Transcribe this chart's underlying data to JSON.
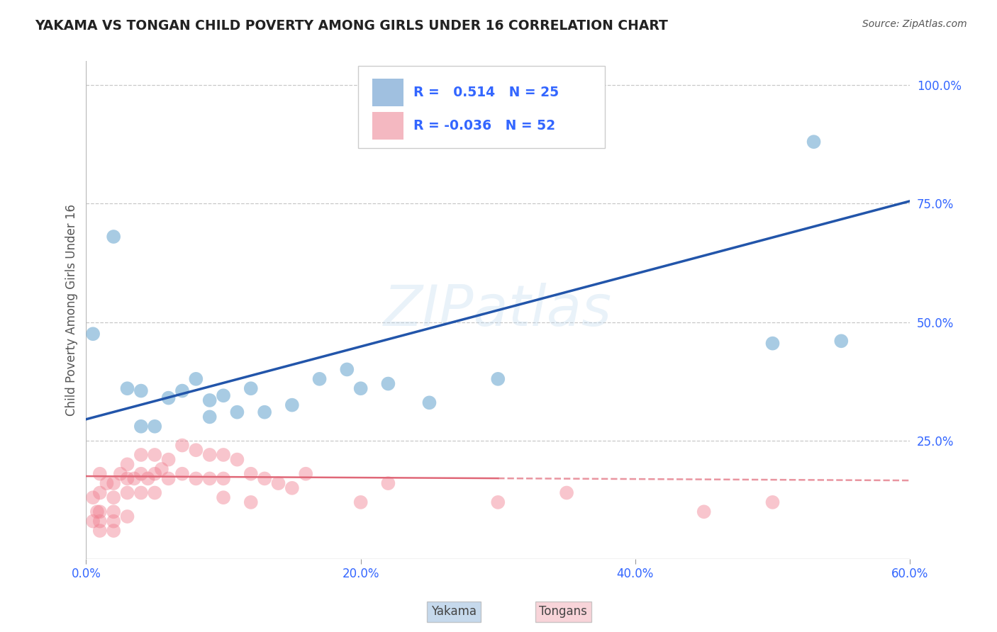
{
  "title": "YAKAMA VS TONGAN CHILD POVERTY AMONG GIRLS UNDER 16 CORRELATION CHART",
  "source": "Source: ZipAtlas.com",
  "ylabel": "Child Poverty Among Girls Under 16",
  "xlim": [
    0.0,
    0.6
  ],
  "ylim": [
    0.0,
    1.05
  ],
  "xticks": [
    0.0,
    0.2,
    0.4,
    0.6
  ],
  "xtick_labels": [
    "0.0%",
    "20.0%",
    "40.0%",
    "60.0%"
  ],
  "ytick_labels": [
    "25.0%",
    "50.0%",
    "75.0%",
    "100.0%"
  ],
  "ytick_vals": [
    0.25,
    0.5,
    0.75,
    1.0
  ],
  "yakama_color": "#7ab0d4",
  "tongan_color": "#f08090",
  "trendline_yakama_color": "#2255aa",
  "trendline_tongan_color": "#e06878",
  "watermark": "ZIPatlas",
  "background_color": "#ffffff",
  "grid_color": "#bbbbbb",
  "title_color": "#222222",
  "source_color": "#555555",
  "legend_r_color": "#3366ff",
  "tick_color": "#3366ff",
  "legend_box_color": "#aaaaaa",
  "legend_yakama_patch": "#a0c0e0",
  "legend_tongan_patch": "#f4b8c1",
  "yakama_x": [
    0.005,
    0.02,
    0.03,
    0.04,
    0.04,
    0.05,
    0.06,
    0.07,
    0.08,
    0.09,
    0.09,
    0.1,
    0.11,
    0.12,
    0.13,
    0.15,
    0.17,
    0.19,
    0.2,
    0.22,
    0.25,
    0.3,
    0.5,
    0.53,
    0.55
  ],
  "yakama_y": [
    0.475,
    0.68,
    0.36,
    0.355,
    0.28,
    0.28,
    0.34,
    0.355,
    0.38,
    0.335,
    0.3,
    0.345,
    0.31,
    0.36,
    0.31,
    0.325,
    0.38,
    0.4,
    0.36,
    0.37,
    0.33,
    0.38,
    0.455,
    0.88,
    0.46
  ],
  "tongan_x": [
    0.005,
    0.005,
    0.008,
    0.01,
    0.01,
    0.01,
    0.01,
    0.01,
    0.015,
    0.02,
    0.02,
    0.02,
    0.02,
    0.02,
    0.025,
    0.03,
    0.03,
    0.03,
    0.03,
    0.035,
    0.04,
    0.04,
    0.04,
    0.045,
    0.05,
    0.05,
    0.05,
    0.055,
    0.06,
    0.06,
    0.07,
    0.07,
    0.08,
    0.08,
    0.09,
    0.09,
    0.1,
    0.1,
    0.1,
    0.11,
    0.12,
    0.12,
    0.13,
    0.14,
    0.15,
    0.16,
    0.2,
    0.22,
    0.3,
    0.35,
    0.45,
    0.5
  ],
  "tongan_y": [
    0.13,
    0.08,
    0.1,
    0.18,
    0.14,
    0.1,
    0.08,
    0.06,
    0.16,
    0.16,
    0.13,
    0.1,
    0.08,
    0.06,
    0.18,
    0.2,
    0.17,
    0.14,
    0.09,
    0.17,
    0.22,
    0.18,
    0.14,
    0.17,
    0.22,
    0.18,
    0.14,
    0.19,
    0.21,
    0.17,
    0.24,
    0.18,
    0.23,
    0.17,
    0.22,
    0.17,
    0.22,
    0.17,
    0.13,
    0.21,
    0.18,
    0.12,
    0.17,
    0.16,
    0.15,
    0.18,
    0.12,
    0.16,
    0.12,
    0.14,
    0.1,
    0.12
  ]
}
